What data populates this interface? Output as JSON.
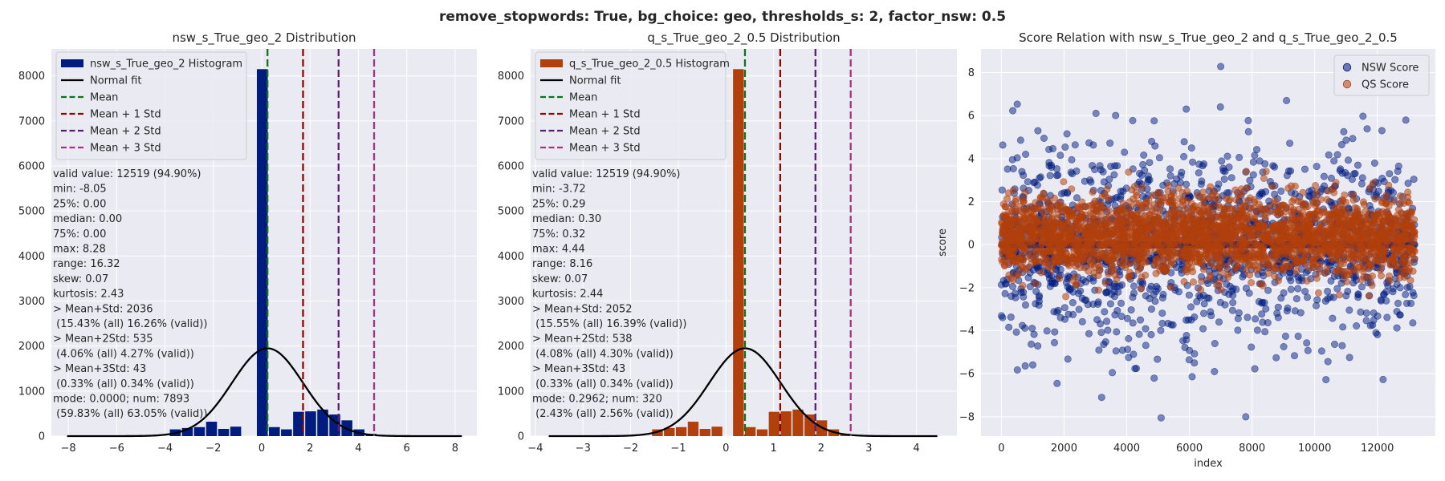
{
  "suptitle": "remove_stopwords: True, bg_choice: geo, thresholds_s: 2, factor_nsw: 0.5",
  "colors": {
    "panel_bg": "#eaeaf2",
    "grid": "#ffffff",
    "nsw": "#001c7f",
    "qs": "#b1400d",
    "fit": "#000000",
    "mean": "#12711c",
    "std1": "#8c0800",
    "std2": "#591e71",
    "std3": "#a23582"
  },
  "chart_data": [
    {
      "type": "bar",
      "title": "nsw_s_True_geo_2 Distribution",
      "xlim": [
        -8.7,
        8.9
      ],
      "ylim": [
        0,
        8600
      ],
      "xticks": [
        "−8",
        "−6",
        "−4",
        "−2",
        "0",
        "2",
        "4",
        "6",
        "8"
      ],
      "xtick_values": [
        -8,
        -6,
        -4,
        -2,
        0,
        2,
        4,
        6,
        8
      ],
      "yticks": [
        "0",
        "1000",
        "2000",
        "3000",
        "4000",
        "5000",
        "6000",
        "7000",
        "8000"
      ],
      "ytick_values": [
        0,
        1000,
        2000,
        3000,
        4000,
        5000,
        6000,
        7000,
        8000
      ],
      "legend": [
        "nsw_s_True_geo_2 Histogram",
        "Normal fit",
        "Mean",
        "Mean + 1 Std",
        "Mean + 2 Std",
        "Mean + 3 Std"
      ],
      "legend_position": "upper-left",
      "bar_color": "#001c7f",
      "bins": [
        {
          "x0": -3.8,
          "x1": -3.3,
          "count": 150
        },
        {
          "x0": -3.3,
          "x1": -2.8,
          "count": 180
        },
        {
          "x0": -2.8,
          "x1": -2.3,
          "count": 200
        },
        {
          "x0": -2.3,
          "x1": -1.8,
          "count": 320
        },
        {
          "x0": -1.8,
          "x1": -1.3,
          "count": 160
        },
        {
          "x0": -1.3,
          "x1": -0.8,
          "count": 210
        },
        {
          "x0": -0.2,
          "x1": 0.3,
          "count": 8150
        },
        {
          "x0": 0.3,
          "x1": 0.8,
          "count": 200
        },
        {
          "x0": 0.8,
          "x1": 1.3,
          "count": 150
        },
        {
          "x0": 1.3,
          "x1": 1.8,
          "count": 540
        },
        {
          "x0": 1.8,
          "x1": 2.3,
          "count": 550
        },
        {
          "x0": 2.3,
          "x1": 2.8,
          "count": 590
        },
        {
          "x0": 2.8,
          "x1": 3.3,
          "count": 480
        },
        {
          "x0": 3.3,
          "x1": 3.8,
          "count": 350
        },
        {
          "x0": 3.8,
          "x1": 4.3,
          "count": 150
        },
        {
          "x0": 4.3,
          "x1": 4.8,
          "count": 50
        },
        {
          "x0": 4.8,
          "x1": 5.3,
          "count": 20
        }
      ],
      "fit": {
        "mean": 0.24,
        "std": 1.47,
        "peak": 1950,
        "x_range": [
          -8.05,
          8.28
        ]
      },
      "vlines": [
        0.24,
        1.71,
        3.18,
        4.65
      ],
      "stats": [
        "valid value: 12519 (94.90%)",
        "min: -8.05",
        "25%: 0.00",
        "median: 0.00",
        "75%: 0.00",
        "max: 8.28",
        "range: 16.32",
        "skew: 0.07",
        "kurtosis: 2.43",
        "> Mean+Std: 2036",
        " (15.43% (all) 16.26% (valid))",
        "> Mean+2Std: 535",
        " (4.06% (all) 4.27% (valid))",
        "> Mean+3Std: 43",
        " (0.33% (all) 0.34% (valid))",
        "mode: 0.0000; num: 7893",
        " (59.83% (all) 63.05% (valid))"
      ]
    },
    {
      "type": "bar",
      "title": "q_s_True_geo_2_0.5 Distribution",
      "xlim": [
        -4.1,
        4.85
      ],
      "ylim": [
        0,
        8600
      ],
      "xticks": [
        "−4",
        "−3",
        "−2",
        "−1",
        "0",
        "1",
        "2",
        "3",
        "4"
      ],
      "xtick_values": [
        -4,
        -3,
        -2,
        -1,
        0,
        1,
        2,
        3,
        4
      ],
      "yticks": [
        "0",
        "1000",
        "2000",
        "3000",
        "4000",
        "5000",
        "6000",
        "7000",
        "8000"
      ],
      "ytick_values": [
        0,
        1000,
        2000,
        3000,
        4000,
        5000,
        6000,
        7000,
        8000
      ],
      "legend": [
        "q_s_True_geo_2_0.5 Histogram",
        "Normal fit",
        "Mean",
        "Mean + 1 Std",
        "Mean + 2 Std",
        "Mean + 3 Std"
      ],
      "legend_position": "upper-left",
      "bar_color": "#b1400d",
      "bins": [
        {
          "x0": -1.55,
          "x1": -1.3,
          "count": 150
        },
        {
          "x0": -1.3,
          "x1": -1.05,
          "count": 180
        },
        {
          "x0": -1.05,
          "x1": -0.8,
          "count": 200
        },
        {
          "x0": -0.8,
          "x1": -0.55,
          "count": 320
        },
        {
          "x0": -0.55,
          "x1": -0.3,
          "count": 160
        },
        {
          "x0": -0.3,
          "x1": -0.05,
          "count": 210
        },
        {
          "x0": 0.15,
          "x1": 0.4,
          "count": 8150
        },
        {
          "x0": 0.4,
          "x1": 0.65,
          "count": 200
        },
        {
          "x0": 0.65,
          "x1": 0.9,
          "count": 150
        },
        {
          "x0": 0.9,
          "x1": 1.15,
          "count": 540
        },
        {
          "x0": 1.15,
          "x1": 1.4,
          "count": 550
        },
        {
          "x0": 1.4,
          "x1": 1.65,
          "count": 590
        },
        {
          "x0": 1.65,
          "x1": 1.9,
          "count": 480
        },
        {
          "x0": 1.9,
          "x1": 2.15,
          "count": 350
        },
        {
          "x0": 2.15,
          "x1": 2.4,
          "count": 150
        },
        {
          "x0": 2.4,
          "x1": 2.65,
          "count": 50
        },
        {
          "x0": 2.65,
          "x1": 2.9,
          "count": 20
        }
      ],
      "fit": {
        "mean": 0.4,
        "std": 0.75,
        "peak": 1950,
        "x_range": [
          -3.72,
          4.44
        ]
      },
      "vlines": [
        0.4,
        1.14,
        1.88,
        2.62
      ],
      "stats": [
        "valid value: 12519 (94.90%)",
        "min: -3.72",
        "25%: 0.29",
        "median: 0.30",
        "75%: 0.32",
        "max: 4.44",
        "range: 8.16",
        "skew: 0.07",
        "kurtosis: 2.44",
        "> Mean+Std: 2052",
        " (15.55% (all) 16.39% (valid))",
        "> Mean+2Std: 538",
        " (4.08% (all) 4.30% (valid))",
        "> Mean+3Std: 43",
        " (0.33% (all) 0.34% (valid))",
        "mode: 0.2962; num: 320",
        " (2.43% (all) 2.56% (valid))"
      ]
    },
    {
      "type": "scatter",
      "title": "Score Relation with nsw_s_True_geo_2 and q_s_True_geo_2_0.5",
      "xlabel": "index",
      "ylabel": "score",
      "xlim": [
        -650,
        13850
      ],
      "ylim": [
        -8.9,
        9.1
      ],
      "xticks": [
        "0",
        "2000",
        "4000",
        "6000",
        "8000",
        "10000",
        "12000"
      ],
      "xtick_values": [
        0,
        2000,
        4000,
        6000,
        8000,
        10000,
        12000
      ],
      "yticks": [
        "−8",
        "−6",
        "−4",
        "−2",
        "0",
        "2",
        "4",
        "6",
        "8"
      ],
      "ytick_values": [
        -8,
        -6,
        -4,
        -2,
        0,
        2,
        4,
        6,
        8
      ],
      "legend": [
        "NSW Score",
        "QS Score"
      ],
      "legend_position": "upper-right",
      "series": [
        {
          "name": "NSW Score",
          "color": "#001c7f",
          "n": 13190,
          "std": 1.47,
          "extremes": [
            [
              7000,
              8.28
            ],
            [
              9100,
              6.7
            ],
            [
              5900,
              6.3
            ],
            [
              5100,
              -8.05
            ],
            [
              7800,
              -8.0
            ],
            [
              3200,
              -7.1
            ],
            [
              6800,
              -5.9
            ]
          ]
        },
        {
          "name": "QS Score",
          "color": "#b1400d",
          "n": 13190,
          "mean": 0.4,
          "std": 0.75
        }
      ]
    }
  ]
}
